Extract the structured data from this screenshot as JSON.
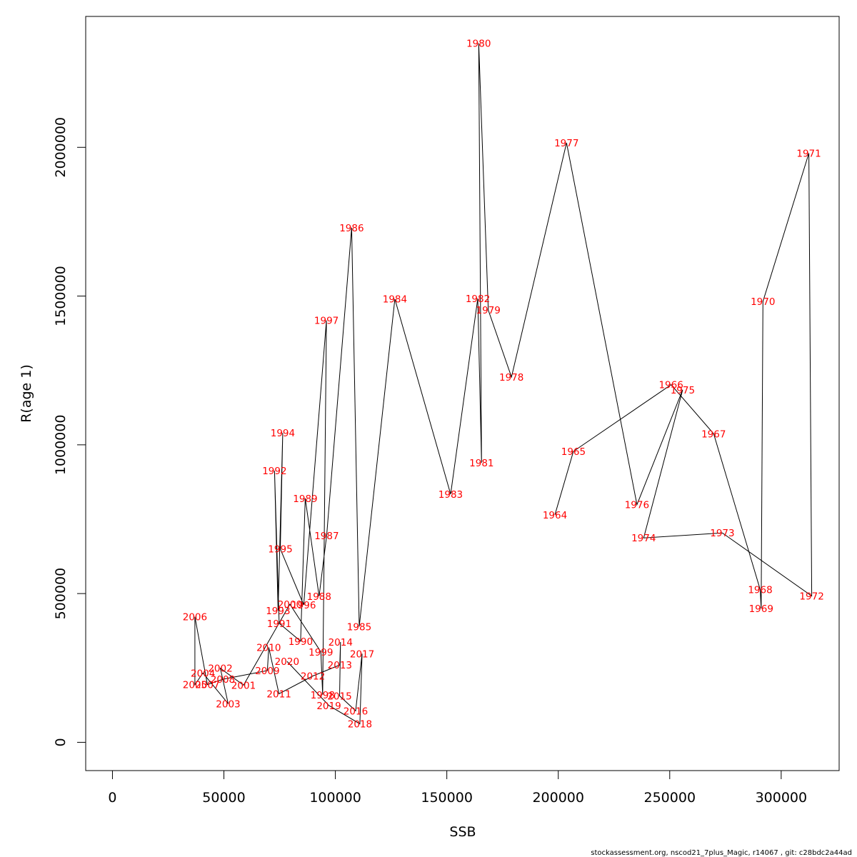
{
  "chart_data": {
    "type": "scatter",
    "xlabel": "SSB",
    "ylabel": "R(age 1)",
    "xlim": [
      -12000,
      326000
    ],
    "ylim": [
      -95000,
      2440000
    ],
    "x_ticks": [
      0,
      50000,
      100000,
      150000,
      200000,
      250000,
      300000
    ],
    "x_tick_labels": [
      "0",
      "50000",
      "100000",
      "150000",
      "200000",
      "250000",
      "300000"
    ],
    "y_ticks": [
      0,
      500000,
      1000000,
      1500000,
      2000000
    ],
    "y_tick_labels": [
      "0",
      "500000",
      "1000000",
      "1500000",
      "2000000"
    ],
    "line_color": "#000000",
    "label_color": "#ff0000",
    "points": [
      {
        "year": "1964",
        "x": 198500,
        "y": 765000
      },
      {
        "year": "1965",
        "x": 206800,
        "y": 978000
      },
      {
        "year": "1966",
        "x": 250600,
        "y": 1202000
      },
      {
        "year": "1967",
        "x": 269700,
        "y": 1037000
      },
      {
        "year": "1968",
        "x": 290600,
        "y": 513000
      },
      {
        "year": "1969",
        "x": 291000,
        "y": 450000
      },
      {
        "year": "1970",
        "x": 291800,
        "y": 1482000
      },
      {
        "year": "1971",
        "x": 312400,
        "y": 1980000
      },
      {
        "year": "1972",
        "x": 313700,
        "y": 492000
      },
      {
        "year": "1973",
        "x": 273600,
        "y": 704000
      },
      {
        "year": "1974",
        "x": 238300,
        "y": 687000
      },
      {
        "year": "1975",
        "x": 255800,
        "y": 1185000
      },
      {
        "year": "1976",
        "x": 235300,
        "y": 799000
      },
      {
        "year": "1977",
        "x": 203700,
        "y": 2015000
      },
      {
        "year": "1978",
        "x": 179000,
        "y": 1228000
      },
      {
        "year": "1979",
        "x": 168600,
        "y": 1453000
      },
      {
        "year": "1980",
        "x": 164300,
        "y": 2350000
      },
      {
        "year": "1981",
        "x": 165600,
        "y": 940000
      },
      {
        "year": "1982",
        "x": 163900,
        "y": 1492000
      },
      {
        "year": "1983",
        "x": 151700,
        "y": 834000
      },
      {
        "year": "1984",
        "x": 126700,
        "y": 1490000
      },
      {
        "year": "1985",
        "x": 110700,
        "y": 389000
      },
      {
        "year": "1986",
        "x": 107300,
        "y": 1730000
      },
      {
        "year": "1987",
        "x": 96100,
        "y": 695000
      },
      {
        "year": "1988",
        "x": 92700,
        "y": 491000
      },
      {
        "year": "1989",
        "x": 86500,
        "y": 820000
      },
      {
        "year": "1990",
        "x": 84400,
        "y": 340000
      },
      {
        "year": "1991",
        "x": 74800,
        "y": 400000
      },
      {
        "year": "1992",
        "x": 72700,
        "y": 913000
      },
      {
        "year": "1993",
        "x": 74300,
        "y": 443000
      },
      {
        "year": "1994",
        "x": 76400,
        "y": 1040000
      },
      {
        "year": "1995",
        "x": 75300,
        "y": 650000
      },
      {
        "year": "1996",
        "x": 85800,
        "y": 462000
      },
      {
        "year": "1997",
        "x": 96000,
        "y": 1418000
      },
      {
        "year": "1998",
        "x": 94300,
        "y": 160000
      },
      {
        "year": "1999",
        "x": 93500,
        "y": 304000
      },
      {
        "year": "2000",
        "x": 79600,
        "y": 464000
      },
      {
        "year": "2001",
        "x": 58800,
        "y": 192000
      },
      {
        "year": "2002",
        "x": 48400,
        "y": 249000
      },
      {
        "year": "2003",
        "x": 51900,
        "y": 130000
      },
      {
        "year": "2004",
        "x": 40600,
        "y": 233000
      },
      {
        "year": "2005",
        "x": 37000,
        "y": 194000
      },
      {
        "year": "2006",
        "x": 37000,
        "y": 422000
      },
      {
        "year": "2007",
        "x": 42600,
        "y": 194000
      },
      {
        "year": "2008",
        "x": 49500,
        "y": 212000
      },
      {
        "year": "2009",
        "x": 69500,
        "y": 241000
      },
      {
        "year": "2010",
        "x": 70100,
        "y": 319000
      },
      {
        "year": "2011",
        "x": 74700,
        "y": 163000
      },
      {
        "year": "2012",
        "x": 89900,
        "y": 223000
      },
      {
        "year": "2013",
        "x": 102000,
        "y": 260000
      },
      {
        "year": "2014",
        "x": 102300,
        "y": 337000
      },
      {
        "year": "2015",
        "x": 101900,
        "y": 156000
      },
      {
        "year": "2016",
        "x": 109100,
        "y": 106000
      },
      {
        "year": "2017",
        "x": 112000,
        "y": 298000
      },
      {
        "year": "2018",
        "x": 111000,
        "y": 62000
      },
      {
        "year": "2019",
        "x": 97100,
        "y": 124000
      },
      {
        "year": "2020",
        "x": 78300,
        "y": 272000
      }
    ]
  },
  "footer": "stockassessment.org, nscod21_7plus_Magic, r14067 , git: c28bdc2a44ad"
}
